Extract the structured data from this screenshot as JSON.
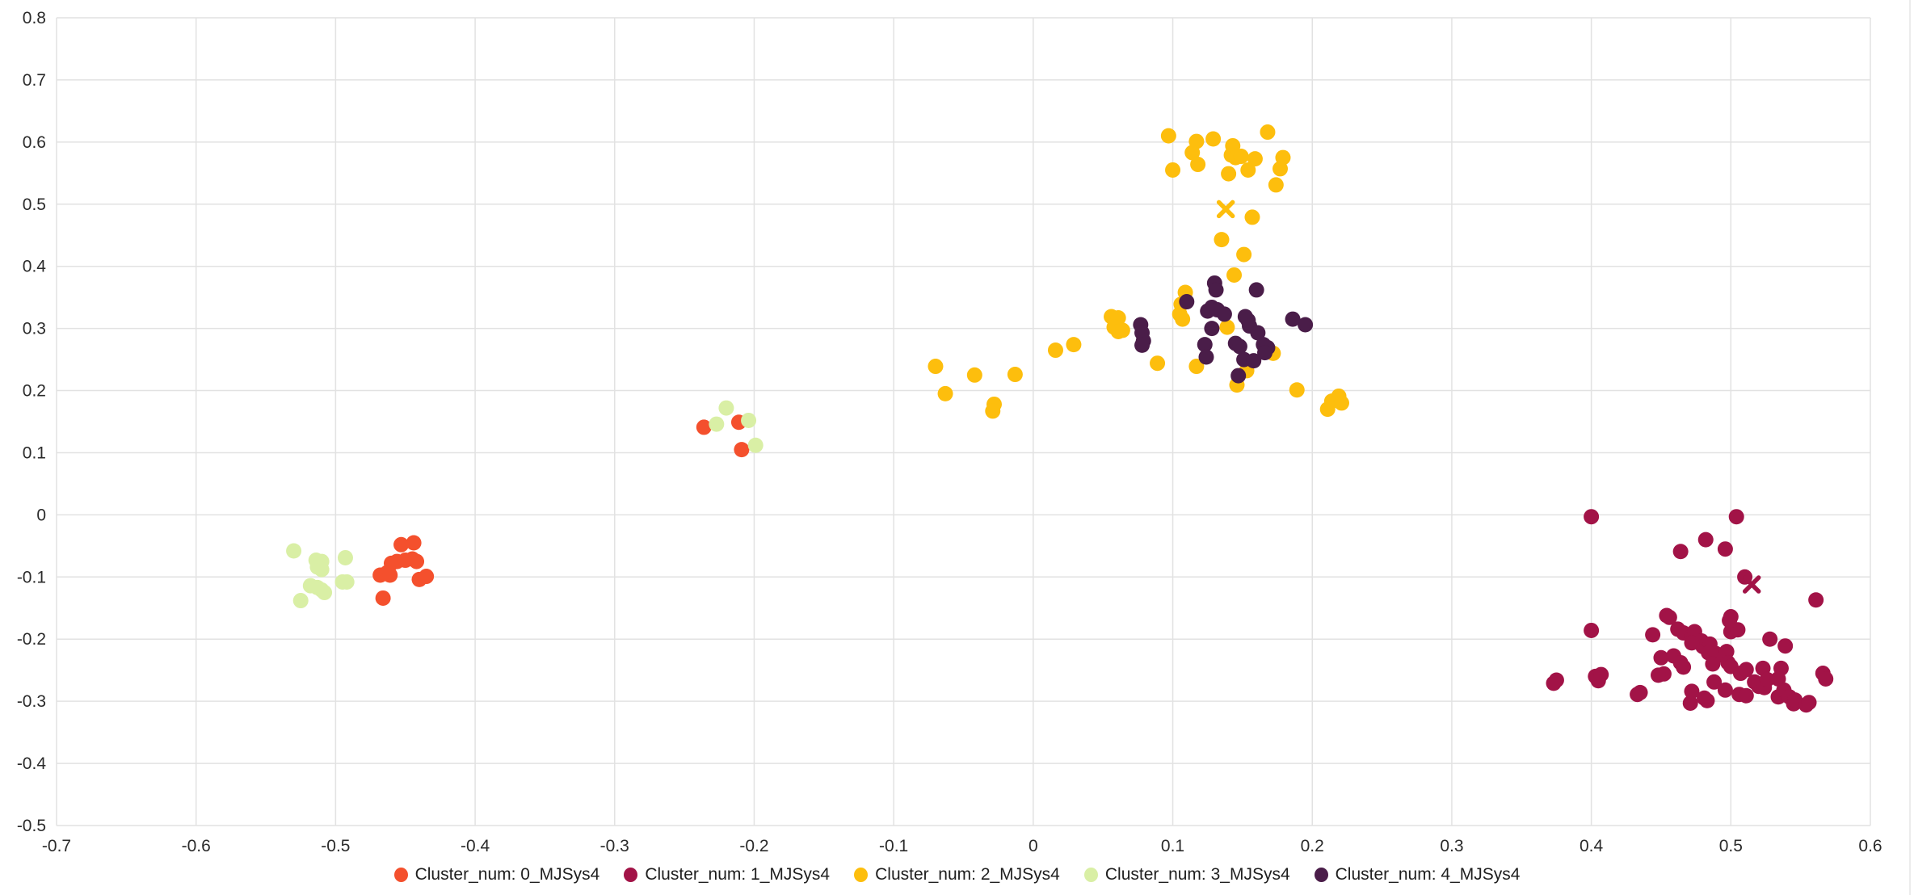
{
  "chart_data": {
    "type": "scatter",
    "xlabel": "",
    "ylabel": "",
    "xlim": [
      -0.7,
      0.6
    ],
    "ylim": [
      -0.5,
      0.8
    ],
    "grid": true,
    "grid_color": "#e2e2e2",
    "background_color": "#ffffff",
    "tick_text_color": "#2b2b2b",
    "legend_position": "bottom-center",
    "x_ticks": [
      "-0.7",
      "-0.6",
      "-0.5",
      "-0.4",
      "-0.3",
      "-0.2",
      "-0.1",
      "0",
      "0.1",
      "0.2",
      "0.3",
      "0.4",
      "0.5",
      "0.6"
    ],
    "y_ticks": [
      "-0.5",
      "-0.4",
      "-0.3",
      "-0.2",
      "-0.1",
      "0",
      "0.1",
      "0.2",
      "0.3",
      "0.4",
      "0.5",
      "0.6",
      "0.7",
      "0.8"
    ],
    "series": [
      {
        "name": "Cluster_num: 0_MJSys4",
        "color": "#f4502d",
        "marker": "circle",
        "points": [
          [
            -0.453,
            -0.048
          ],
          [
            -0.444,
            -0.045
          ],
          [
            -0.46,
            -0.078
          ],
          [
            -0.456,
            -0.075
          ],
          [
            -0.45,
            -0.073
          ],
          [
            -0.445,
            -0.071
          ],
          [
            -0.442,
            -0.075
          ],
          [
            -0.468,
            -0.097
          ],
          [
            -0.463,
            -0.093
          ],
          [
            -0.461,
            -0.097
          ],
          [
            -0.44,
            -0.104
          ],
          [
            -0.435,
            -0.099
          ],
          [
            -0.466,
            -0.134
          ],
          [
            -0.236,
            0.141
          ],
          [
            -0.211,
            0.149
          ],
          [
            -0.209,
            0.105
          ]
        ],
        "centroid": null
      },
      {
        "name": "Cluster_num: 1_MJSys4",
        "color": "#a21347",
        "marker": "circle",
        "points": [
          [
            0.4,
            -0.003
          ],
          [
            0.504,
            -0.003
          ],
          [
            0.482,
            -0.04
          ],
          [
            0.496,
            -0.055
          ],
          [
            0.464,
            -0.059
          ],
          [
            0.51,
            -0.1
          ],
          [
            0.561,
            -0.137
          ],
          [
            0.4,
            -0.186
          ],
          [
            0.444,
            -0.193
          ],
          [
            0.454,
            -0.162
          ],
          [
            0.5,
            -0.164
          ],
          [
            0.462,
            -0.184
          ],
          [
            0.466,
            -0.19
          ],
          [
            0.472,
            -0.195
          ],
          [
            0.474,
            -0.188
          ],
          [
            0.479,
            -0.203
          ],
          [
            0.48,
            -0.212
          ],
          [
            0.485,
            -0.208
          ],
          [
            0.472,
            -0.206
          ],
          [
            0.5,
            -0.188
          ],
          [
            0.505,
            -0.185
          ],
          [
            0.499,
            -0.17
          ],
          [
            0.528,
            -0.2
          ],
          [
            0.539,
            -0.211
          ],
          [
            0.45,
            -0.23
          ],
          [
            0.459,
            -0.227
          ],
          [
            0.464,
            -0.238
          ],
          [
            0.466,
            -0.245
          ],
          [
            0.484,
            -0.222
          ],
          [
            0.489,
            -0.223
          ],
          [
            0.49,
            -0.227
          ],
          [
            0.497,
            -0.22
          ],
          [
            0.487,
            -0.24
          ],
          [
            0.498,
            -0.238
          ],
          [
            0.5,
            -0.244
          ],
          [
            0.507,
            -0.255
          ],
          [
            0.511,
            -0.249
          ],
          [
            0.523,
            -0.247
          ],
          [
            0.536,
            -0.247
          ],
          [
            0.452,
            -0.256
          ],
          [
            0.448,
            -0.258
          ],
          [
            0.456,
            -0.165
          ],
          [
            0.488,
            -0.269
          ],
          [
            0.496,
            -0.282
          ],
          [
            0.506,
            -0.289
          ],
          [
            0.511,
            -0.291
          ],
          [
            0.517,
            -0.269
          ],
          [
            0.52,
            -0.276
          ],
          [
            0.524,
            -0.278
          ],
          [
            0.526,
            -0.265
          ],
          [
            0.534,
            -0.264
          ],
          [
            0.534,
            -0.293
          ],
          [
            0.538,
            -0.282
          ],
          [
            0.542,
            -0.293
          ],
          [
            0.545,
            -0.304
          ],
          [
            0.546,
            -0.298
          ],
          [
            0.554,
            -0.306
          ],
          [
            0.556,
            -0.302
          ],
          [
            0.566,
            -0.255
          ],
          [
            0.568,
            -0.264
          ],
          [
            0.375,
            -0.266
          ],
          [
            0.373,
            -0.271
          ],
          [
            0.403,
            -0.26
          ],
          [
            0.405,
            -0.267
          ],
          [
            0.407,
            -0.257
          ],
          [
            0.433,
            -0.289
          ],
          [
            0.435,
            -0.286
          ],
          [
            0.471,
            -0.303
          ],
          [
            0.472,
            -0.284
          ],
          [
            0.481,
            -0.295
          ],
          [
            0.483,
            -0.299
          ]
        ],
        "centroid": [
          0.515,
          -0.112
        ]
      },
      {
        "name": "Cluster_num: 2_MJSys4",
        "color": "#fdbe0d",
        "marker": "circle",
        "points": [
          [
            0.097,
            0.61
          ],
          [
            0.168,
            0.616
          ],
          [
            0.129,
            0.605
          ],
          [
            0.117,
            0.601
          ],
          [
            0.114,
            0.583
          ],
          [
            0.143,
            0.594
          ],
          [
            0.142,
            0.579
          ],
          [
            0.145,
            0.575
          ],
          [
            0.149,
            0.577
          ],
          [
            0.159,
            0.573
          ],
          [
            0.179,
            0.575
          ],
          [
            0.118,
            0.564
          ],
          [
            0.1,
            0.555
          ],
          [
            0.14,
            0.549
          ],
          [
            0.154,
            0.555
          ],
          [
            0.177,
            0.557
          ],
          [
            0.174,
            0.531
          ],
          [
            0.157,
            0.479
          ],
          [
            0.135,
            0.443
          ],
          [
            0.151,
            0.419
          ],
          [
            0.144,
            0.386
          ],
          [
            0.016,
            0.265
          ],
          [
            0.029,
            0.274
          ],
          [
            0.056,
            0.319
          ],
          [
            0.061,
            0.317
          ],
          [
            0.058,
            0.302
          ],
          [
            0.061,
            0.295
          ],
          [
            0.064,
            0.297
          ],
          [
            0.089,
            0.244
          ],
          [
            0.109,
            0.358
          ],
          [
            0.106,
            0.339
          ],
          [
            0.105,
            0.323
          ],
          [
            0.107,
            0.315
          ],
          [
            0.139,
            0.302
          ],
          [
            0.117,
            0.239
          ],
          [
            0.172,
            0.26
          ],
          [
            0.153,
            0.232
          ],
          [
            0.146,
            0.209
          ],
          [
            0.189,
            0.201
          ],
          [
            0.211,
            0.17
          ],
          [
            0.214,
            0.183
          ],
          [
            0.219,
            0.191
          ],
          [
            0.221,
            0.18
          ],
          [
            -0.07,
            0.239
          ],
          [
            -0.042,
            0.225
          ],
          [
            -0.013,
            0.226
          ],
          [
            -0.063,
            0.195
          ],
          [
            -0.028,
            0.178
          ],
          [
            -0.029,
            0.167
          ]
        ],
        "centroid": [
          0.138,
          0.492
        ]
      },
      {
        "name": "Cluster_num: 3_MJSys4",
        "color": "#d9efa5",
        "marker": "circle",
        "points": [
          [
            -0.53,
            -0.058
          ],
          [
            -0.493,
            -0.069
          ],
          [
            -0.514,
            -0.073
          ],
          [
            -0.51,
            -0.075
          ],
          [
            -0.513,
            -0.084
          ],
          [
            -0.51,
            -0.088
          ],
          [
            -0.495,
            -0.108
          ],
          [
            -0.492,
            -0.108
          ],
          [
            -0.518,
            -0.114
          ],
          [
            -0.513,
            -0.117
          ],
          [
            -0.51,
            -0.121
          ],
          [
            -0.508,
            -0.125
          ],
          [
            -0.525,
            -0.138
          ],
          [
            -0.22,
            0.172
          ],
          [
            -0.227,
            0.146
          ],
          [
            -0.204,
            0.152
          ],
          [
            -0.199,
            0.112
          ]
        ],
        "centroid": null
      },
      {
        "name": "Cluster_num: 4_MJSys4",
        "color": "#4a1d49",
        "marker": "circle",
        "points": [
          [
            0.13,
            0.373
          ],
          [
            0.131,
            0.362
          ],
          [
            0.16,
            0.362
          ],
          [
            0.11,
            0.343
          ],
          [
            0.125,
            0.328
          ],
          [
            0.128,
            0.334
          ],
          [
            0.132,
            0.33
          ],
          [
            0.137,
            0.323
          ],
          [
            0.152,
            0.319
          ],
          [
            0.154,
            0.313
          ],
          [
            0.155,
            0.304
          ],
          [
            0.128,
            0.3
          ],
          [
            0.186,
            0.315
          ],
          [
            0.195,
            0.306
          ],
          [
            0.161,
            0.293
          ],
          [
            0.145,
            0.276
          ],
          [
            0.148,
            0.271
          ],
          [
            0.123,
            0.274
          ],
          [
            0.124,
            0.254
          ],
          [
            0.165,
            0.274
          ],
          [
            0.168,
            0.269
          ],
          [
            0.166,
            0.261
          ],
          [
            0.151,
            0.25
          ],
          [
            0.158,
            0.248
          ],
          [
            0.147,
            0.224
          ],
          [
            0.077,
            0.306
          ],
          [
            0.078,
            0.293
          ],
          [
            0.079,
            0.28
          ],
          [
            0.078,
            0.273
          ]
        ],
        "centroid": null
      }
    ]
  }
}
